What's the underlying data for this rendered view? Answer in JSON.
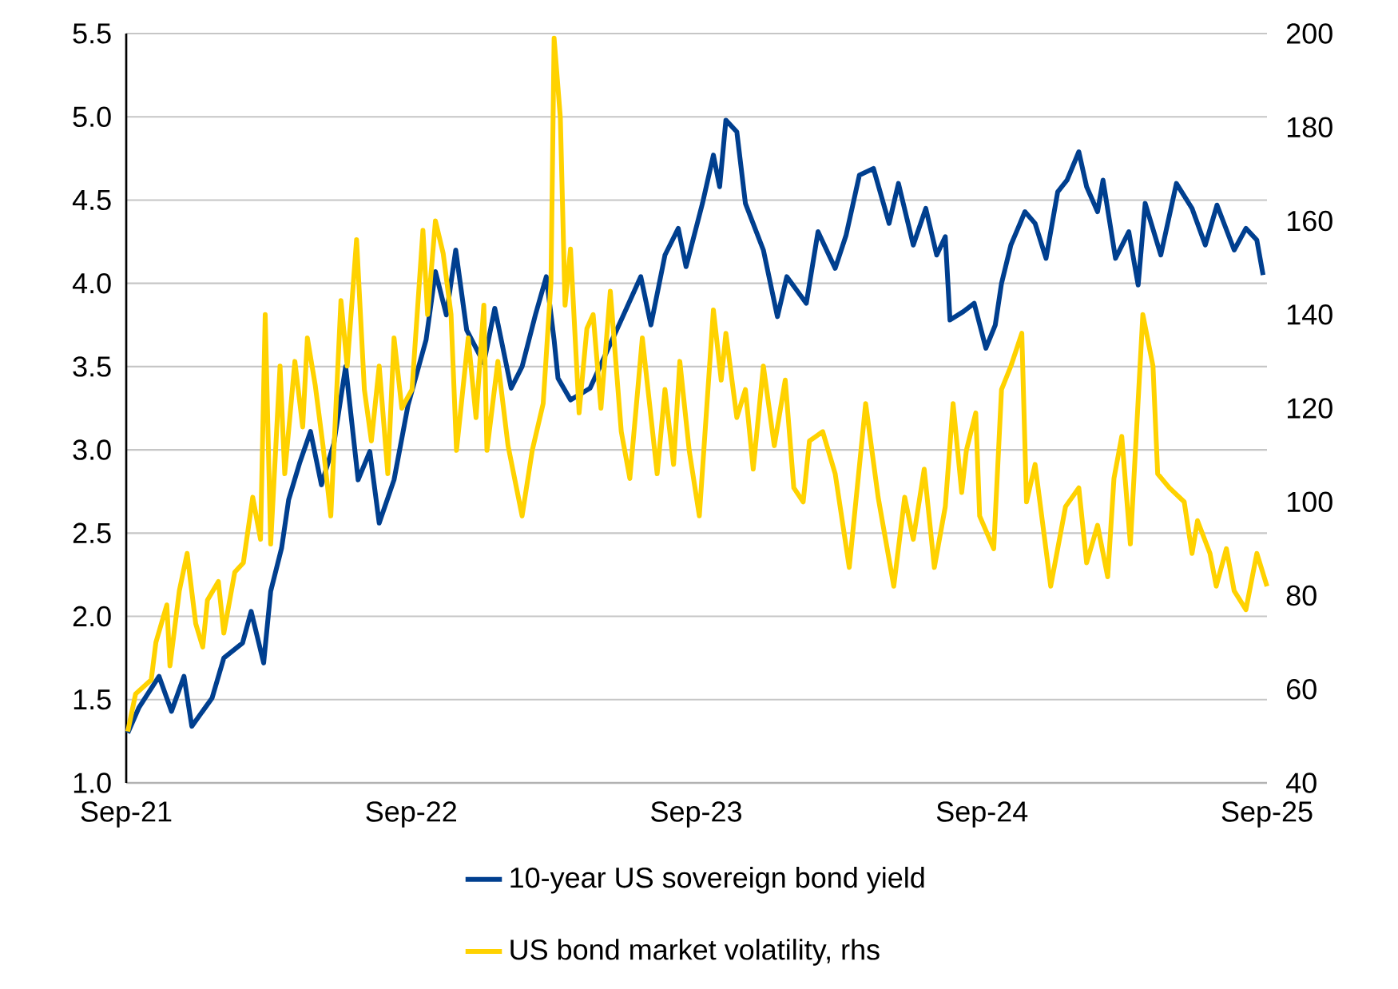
{
  "chart_data": {
    "type": "line",
    "xlim": [
      "2021-09-01",
      "2025-09-01"
    ],
    "xticks": [
      {
        "value": "2021-09-01",
        "label": "Sep-21"
      },
      {
        "value": "2022-09-01",
        "label": "Sep-22"
      },
      {
        "value": "2023-09-01",
        "label": "Sep-23"
      },
      {
        "value": "2024-09-01",
        "label": "Sep-24"
      },
      {
        "value": "2025-09-01",
        "label": "Sep-25"
      }
    ],
    "ylim": [
      1.0,
      5.5
    ],
    "yticks": [
      {
        "value": 1.0,
        "label": "1.0"
      },
      {
        "value": 1.5,
        "label": "1.5"
      },
      {
        "value": 2.0,
        "label": "2.0"
      },
      {
        "value": 2.5,
        "label": "2.5"
      },
      {
        "value": 3.0,
        "label": "3.0"
      },
      {
        "value": 3.5,
        "label": "3.5"
      },
      {
        "value": 4.0,
        "label": "4.0"
      },
      {
        "value": 4.5,
        "label": "4.5"
      },
      {
        "value": 5.0,
        "label": "5.0"
      },
      {
        "value": 5.5,
        "label": "5.5"
      }
    ],
    "y2lim": [
      40,
      200
    ],
    "y2ticks": [
      40,
      60,
      80,
      100,
      120,
      140,
      160,
      180,
      200
    ],
    "grid": "y",
    "legend": "bottom",
    "marker": "none",
    "line_style": "solid",
    "series": [
      {
        "name": "10-year US sovereign bond yield",
        "color": "#003f8f",
        "x": [
          "2021-09-03",
          "2021-09-17",
          "2021-10-13",
          "2021-10-29",
          "2021-11-14",
          "2021-11-24",
          "2021-12-20",
          "2022-01-04",
          "2022-01-28",
          "2022-02-08",
          "2022-02-24",
          "2022-03-05",
          "2022-03-19",
          "2022-03-28",
          "2022-04-11",
          "2022-04-25",
          "2022-05-09",
          "2022-05-25",
          "2022-06-09",
          "2022-06-25",
          "2022-07-10",
          "2022-07-22",
          "2022-08-10",
          "2022-08-28",
          "2022-09-20",
          "2022-10-02",
          "2022-10-16",
          "2022-10-28",
          "2022-11-11",
          "2022-12-03",
          "2022-12-17",
          "2023-01-07",
          "2023-01-21",
          "2023-02-07",
          "2023-02-21",
          "2023-03-03",
          "2023-03-08",
          "2023-03-24",
          "2023-04-18",
          "2023-05-28",
          "2023-06-22",
          "2023-07-05",
          "2023-07-23",
          "2023-08-09",
          "2023-08-19",
          "2023-09-09",
          "2023-09-23",
          "2023-10-01",
          "2023-10-09",
          "2023-10-23",
          "2023-11-03",
          "2023-11-26",
          "2023-12-14",
          "2023-12-26",
          "2024-01-20",
          "2024-02-04",
          "2024-02-26",
          "2024-03-11",
          "2024-03-28",
          "2024-04-15",
          "2024-05-05",
          "2024-05-17",
          "2024-06-05",
          "2024-06-21",
          "2024-07-05",
          "2024-07-16",
          "2024-07-22",
          "2024-08-08",
          "2024-08-22",
          "2024-09-06",
          "2024-09-18",
          "2024-09-26",
          "2024-10-08",
          "2024-10-26",
          "2024-11-08",
          "2024-11-22",
          "2024-12-07",
          "2024-12-19",
          "2025-01-03",
          "2025-01-13",
          "2025-01-27",
          "2025-02-03",
          "2025-02-19",
          "2025-03-08",
          "2025-03-20",
          "2025-03-29",
          "2025-04-18",
          "2025-05-08",
          "2025-05-28",
          "2025-06-14",
          "2025-06-29",
          "2025-07-21",
          "2025-08-05",
          "2025-08-19",
          "2025-08-27"
        ],
        "values": [
          1.3,
          1.45,
          1.64,
          1.43,
          1.64,
          1.34,
          1.51,
          1.75,
          1.84,
          2.03,
          1.72,
          2.15,
          2.41,
          2.7,
          2.92,
          3.11,
          2.79,
          3.04,
          3.5,
          2.82,
          2.99,
          2.56,
          2.82,
          3.27,
          3.66,
          4.07,
          3.81,
          4.2,
          3.72,
          3.52,
          3.85,
          3.37,
          3.5,
          3.81,
          4.04,
          3.66,
          3.43,
          3.3,
          3.37,
          3.78,
          4.04,
          3.75,
          4.17,
          4.33,
          4.1,
          4.48,
          4.77,
          4.58,
          4.98,
          4.91,
          4.48,
          4.2,
          3.8,
          4.04,
          3.88,
          4.31,
          4.09,
          4.29,
          4.65,
          4.69,
          4.36,
          4.6,
          4.23,
          4.45,
          4.17,
          4.28,
          3.78,
          3.83,
          3.88,
          3.61,
          3.75,
          4.0,
          4.23,
          4.43,
          4.36,
          4.15,
          4.55,
          4.62,
          4.79,
          4.58,
          4.43,
          4.62,
          4.15,
          4.31,
          3.99,
          4.48,
          4.17,
          4.6,
          4.45,
          4.23,
          4.47,
          4.2,
          4.33,
          4.26,
          4.05
        ]
      },
      {
        "name": "US bond market volatility, rhs",
        "color": "#ffd200",
        "axis": "y2",
        "x": [
          "2021-09-03",
          "2021-09-13",
          "2021-10-03",
          "2021-10-09",
          "2021-10-23",
          "2021-10-27",
          "2021-11-08",
          "2021-11-18",
          "2021-11-29",
          "2021-12-08",
          "2021-12-14",
          "2021-12-28",
          "2022-01-04",
          "2022-01-18",
          "2022-01-29",
          "2022-02-10",
          "2022-02-20",
          "2022-02-26",
          "2022-03-05",
          "2022-03-17",
          "2022-03-23",
          "2022-04-05",
          "2022-04-15",
          "2022-04-21",
          "2022-05-01",
          "2022-05-11",
          "2022-05-21",
          "2022-06-03",
          "2022-06-11",
          "2022-06-23",
          "2022-07-03",
          "2022-07-12",
          "2022-07-22",
          "2022-08-02",
          "2022-08-10",
          "2022-08-20",
          "2022-09-02",
          "2022-09-16",
          "2022-09-22",
          "2022-10-02",
          "2022-10-12",
          "2022-10-22",
          "2022-10-29",
          "2022-11-13",
          "2022-11-23",
          "2022-12-03",
          "2022-12-07",
          "2022-12-21",
          "2023-01-03",
          "2023-01-21",
          "2023-02-03",
          "2023-02-17",
          "2023-02-27",
          "2023-03-03",
          "2023-03-11",
          "2023-03-17",
          "2023-03-24",
          "2023-04-04",
          "2023-04-14",
          "2023-04-22",
          "2023-05-02",
          "2023-05-14",
          "2023-05-28",
          "2023-06-08",
          "2023-06-24",
          "2023-07-13",
          "2023-07-23",
          "2023-08-03",
          "2023-08-11",
          "2023-08-23",
          "2023-09-05",
          "2023-09-23",
          "2023-10-03",
          "2023-10-09",
          "2023-10-23",
          "2023-11-03",
          "2023-11-13",
          "2023-11-26",
          "2023-12-10",
          "2023-12-24",
          "2024-01-04",
          "2024-01-16",
          "2024-01-24",
          "2024-02-10",
          "2024-02-26",
          "2024-03-15",
          "2024-04-05",
          "2024-04-21",
          "2024-05-11",
          "2024-05-25",
          "2024-06-05",
          "2024-06-19",
          "2024-07-02",
          "2024-07-16",
          "2024-07-26",
          "2024-08-06",
          "2024-08-12",
          "2024-08-24",
          "2024-08-29",
          "2024-09-16",
          "2024-09-26",
          "2024-10-08",
          "2024-10-22",
          "2024-10-28",
          "2024-11-08",
          "2024-11-28",
          "2024-12-17",
          "2025-01-03",
          "2025-01-13",
          "2025-01-27",
          "2025-02-09",
          "2025-02-17",
          "2025-02-27",
          "2025-03-10",
          "2025-03-26",
          "2025-04-08",
          "2025-04-14",
          "2025-04-29",
          "2025-05-18",
          "2025-05-28",
          "2025-06-04",
          "2025-06-20",
          "2025-06-28",
          "2025-07-11",
          "2025-07-21",
          "2025-08-05",
          "2025-08-19",
          "2025-09-01"
        ],
        "values": [
          51,
          59,
          62,
          70,
          78,
          65,
          81,
          89,
          74,
          69,
          79,
          83,
          72,
          85,
          87,
          101,
          92,
          140,
          91,
          129,
          106,
          130,
          116,
          135,
          125,
          112,
          97,
          143,
          129,
          156,
          124,
          113,
          129,
          106,
          135,
          120,
          124,
          158,
          140,
          160,
          153,
          140,
          111,
          135,
          118,
          142,
          111,
          130,
          112,
          97,
          111,
          121,
          147,
          199,
          182,
          142,
          154,
          119,
          137,
          140,
          120,
          145,
          115,
          105,
          135,
          106,
          124,
          108,
          130,
          111,
          97,
          141,
          126,
          136,
          118,
          124,
          107,
          129,
          112,
          126,
          103,
          100,
          113,
          115,
          106,
          86,
          121,
          101,
          82,
          101,
          92,
          107,
          86,
          99,
          121,
          102,
          111,
          119,
          97,
          90,
          124,
          129,
          136,
          100,
          108,
          82,
          99,
          103,
          87,
          95,
          84,
          105,
          114,
          91,
          140,
          129,
          106,
          103,
          100,
          89,
          96,
          89,
          82,
          90,
          81,
          77,
          89,
          82
        ]
      }
    ]
  }
}
